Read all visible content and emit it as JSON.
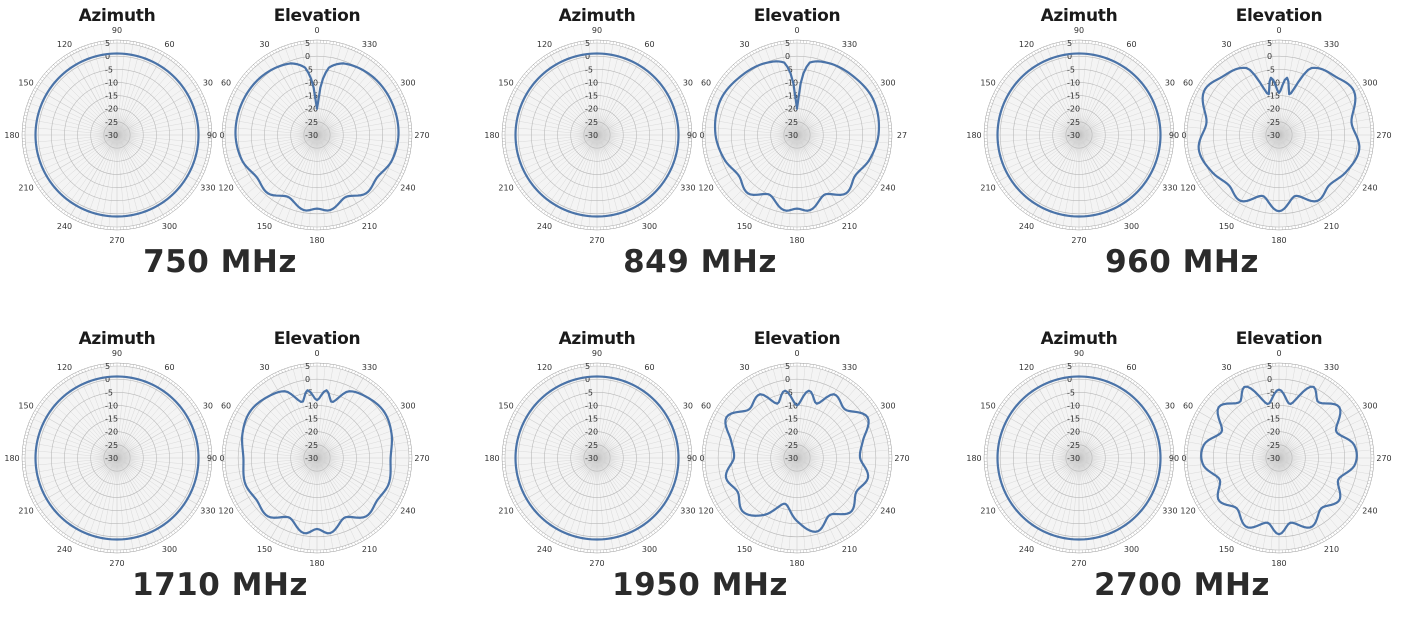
{
  "chart_data": [
    {
      "type": "polar",
      "frequency": "750 MHz",
      "plots": [
        {
          "title": "Azimuth",
          "kind": "azimuth",
          "series": {
            "angle_deg": [
              0,
              90,
              180,
              270
            ],
            "gain_db": [
              1,
              1,
              1,
              1
            ]
          }
        },
        {
          "title": "Elevation",
          "kind": "elevation",
          "series": {
            "angle_deg": [
              0,
              5,
              10,
              20,
              40,
              60,
              90,
              110,
              125,
              140,
              155,
              170,
              180,
              190,
              205,
              220,
              235,
              250,
              270,
              300,
              320,
              340,
              350,
              355
            ],
            "gain_db": [
              -20,
              -10,
              -4,
              -1,
              0.5,
              1,
              1,
              0,
              -2,
              -1,
              -4,
              -1,
              -2,
              -1,
              -4,
              -1,
              -2,
              0,
              1,
              1,
              0.5,
              -1,
              -4,
              -10
            ]
          }
        }
      ],
      "radial_ticks": [
        "5",
        "0",
        "-5",
        "-10",
        "-15",
        "-20",
        "-25",
        "-30"
      ],
      "azimuth_angle_ticks": [
        "90",
        "60",
        "30",
        "0",
        "330",
        "300",
        "270",
        "240",
        "210",
        "180",
        "150",
        "120"
      ],
      "elevation_angle_ticks": [
        "0",
        "330",
        "300",
        "270",
        "240",
        "210",
        "180",
        "150",
        "120",
        "90",
        "60",
        "30"
      ]
    },
    {
      "type": "polar",
      "frequency": "849 MHz",
      "plots": [
        {
          "title": "Azimuth",
          "kind": "azimuth",
          "series": {
            "angle_deg": [
              0,
              90,
              180,
              270
            ],
            "gain_db": [
              1,
              1,
              1,
              1
            ]
          }
        },
        {
          "title": "Elevation",
          "kind": "elevation",
          "series": {
            "angle_deg": [
              0,
              5,
              10,
              25,
              45,
              65,
              90,
              110,
              125,
              140,
              155,
              170,
              180,
              190,
              205,
              220,
              235,
              250,
              270,
              295,
              315,
              335,
              350,
              355
            ],
            "gain_db": [
              -20,
              -8,
              -2,
              0,
              1,
              2,
              1,
              -1,
              -3,
              -1,
              -5,
              -1,
              -2,
              -1,
              -5,
              -1,
              -3,
              -1,
              1,
              2,
              1,
              0,
              -2,
              -8
            ]
          }
        }
      ],
      "radial_ticks": [
        "5",
        "0",
        "-5",
        "-10",
        "-15",
        "-20",
        "-25",
        "-30"
      ],
      "azimuth_angle_ticks": [
        "90",
        "60",
        "30",
        "0",
        "330",
        "300",
        "270",
        "240",
        "210",
        "180",
        "150",
        "120"
      ],
      "elevation_angle_ticks": [
        "0",
        "330",
        "300",
        "27",
        "240",
        "210",
        "180",
        "150",
        "120",
        "90",
        "60",
        "30"
      ]
    },
    {
      "type": "polar",
      "frequency": "960 MHz",
      "plots": [
        {
          "title": "Azimuth",
          "kind": "azimuth",
          "series": {
            "angle_deg": [
              0,
              90,
              180,
              270
            ],
            "gain_db": [
              1,
              1,
              1,
              1
            ]
          }
        },
        {
          "title": "Elevation",
          "kind": "elevation",
          "series": {
            "angle_deg": [
              0,
              8,
              15,
              25,
              45,
              60,
              80,
              100,
              120,
              135,
              150,
              165,
              180,
              195,
              210,
              225,
              240,
              260,
              280,
              300,
              315,
              335,
              345,
              352
            ],
            "gain_db": [
              -14,
              -8,
              -14,
              -2,
              1,
              3,
              -2,
              1,
              -1,
              -3,
              -1,
              -6,
              -1,
              -6,
              -1,
              -3,
              -1,
              1,
              -2,
              3,
              1,
              -2,
              -14,
              -8
            ]
          }
        }
      ],
      "radial_ticks": [
        "5",
        "0",
        "-5",
        "-10",
        "-15",
        "-20",
        "-25",
        "-30"
      ],
      "azimuth_angle_ticks": [
        "90",
        "60",
        "30",
        "0",
        "330",
        "300",
        "270",
        "240",
        "210",
        "180",
        "150",
        "120"
      ],
      "elevation_angle_ticks": [
        "0",
        "330",
        "300",
        "270",
        "240",
        "210",
        "180",
        "150",
        "120",
        "90",
        "60",
        "30"
      ]
    },
    {
      "type": "polar",
      "frequency": "1710 MHz",
      "plots": [
        {
          "title": "Azimuth",
          "kind": "azimuth",
          "series": {
            "angle_deg": [
              0,
              90,
              180,
              270
            ],
            "gain_db": [
              1,
              1,
              1,
              1
            ]
          }
        },
        {
          "title": "Elevation",
          "kind": "elevation",
          "series": {
            "angle_deg": [
              0,
              8,
              15,
              25,
              40,
              55,
              70,
              90,
              110,
              125,
              140,
              155,
              170,
              180,
              190,
              205,
              220,
              235,
              250,
              270,
              290,
              305,
              320,
              335,
              345,
              352
            ],
            "gain_db": [
              -8,
              -4,
              -8,
              -2,
              0,
              1,
              0,
              -2,
              -1,
              -2,
              -1,
              -5,
              -1,
              -3,
              -1,
              -5,
              -1,
              -2,
              -1,
              -2,
              0,
              1,
              0,
              -2,
              -8,
              -4
            ]
          }
        }
      ],
      "radial_ticks": [
        "5",
        "0",
        "-5",
        "-10",
        "-15",
        "-20",
        "-25",
        "-30"
      ],
      "azimuth_angle_ticks": [
        "90",
        "60",
        "30",
        "0",
        "330",
        "300",
        "270",
        "240",
        "210",
        "180",
        "150",
        "120"
      ],
      "elevation_angle_ticks": [
        "0",
        "330",
        "300",
        "270",
        "240",
        "210",
        "180",
        "150",
        "120",
        "90",
        "60",
        "30"
      ]
    },
    {
      "type": "polar",
      "frequency": "1950 MHz",
      "plots": [
        {
          "title": "Azimuth",
          "kind": "azimuth",
          "series": {
            "angle_deg": [
              0,
              90,
              180,
              270
            ],
            "gain_db": [
              1,
              1,
              1,
              1
            ]
          }
        },
        {
          "title": "Elevation",
          "kind": "elevation",
          "series": {
            "angle_deg": [
              0,
              10,
              20,
              30,
              45,
              60,
              75,
              90,
              105,
              120,
              135,
              150,
              165,
              180,
              195,
              210,
              225,
              240,
              255,
              270,
              285,
              300,
              315,
              330,
              340,
              350
            ],
            "gain_db": [
              -10,
              -4,
              -8,
              -2,
              -4,
              1,
              -4,
              -6,
              -2,
              -4,
              -1,
              -5,
              -12,
              -6,
              -1,
              -5,
              -1,
              -4,
              -2,
              -6,
              -4,
              1,
              -4,
              -2,
              -8,
              -4
            ]
          }
        }
      ],
      "radial_ticks": [
        "5",
        "0",
        "-5",
        "-10",
        "-15",
        "-20",
        "-25",
        "-30"
      ],
      "azimuth_angle_ticks": [
        "90",
        "60",
        "30",
        "0",
        "330",
        "300",
        "270",
        "240",
        "210",
        "180",
        "150",
        "120"
      ],
      "elevation_angle_ticks": [
        "0",
        "330",
        "300",
        "270",
        "240",
        "210",
        "180",
        "150",
        "120",
        "90",
        "60",
        "30"
      ]
    },
    {
      "type": "polar",
      "frequency": "2700 MHz",
      "plots": [
        {
          "title": "Azimuth",
          "kind": "azimuth",
          "series": {
            "angle_deg": [
              0,
              90,
              180,
              270
            ],
            "gain_db": [
              1,
              1,
              1,
              1
            ]
          }
        },
        {
          "title": "Elevation",
          "kind": "elevation",
          "series": {
            "angle_deg": [
              0,
              12,
              25,
              35,
              50,
              65,
              80,
              95,
              110,
              125,
              140,
              155,
              170,
              180,
              190,
              205,
              220,
              235,
              250,
              265,
              280,
              295,
              310,
              325,
              335,
              348
            ],
            "gain_db": [
              -4,
              -9,
              0,
              -4,
              0,
              -6,
              -1,
              -1,
              -6,
              -2,
              -5,
              -1,
              -5,
              -1,
              -5,
              -1,
              -5,
              -2,
              -6,
              -1,
              -1,
              -6,
              0,
              -4,
              0,
              -9
            ]
          }
        }
      ],
      "radial_ticks": [
        "5",
        "0",
        "-5",
        "-10",
        "-15",
        "-20",
        "-25",
        "-30"
      ],
      "azimuth_angle_ticks": [
        "90",
        "60",
        "30",
        "0",
        "330",
        "300",
        "270",
        "240",
        "210",
        "180",
        "150",
        "120"
      ],
      "elevation_angle_ticks": [
        "0",
        "330",
        "300",
        "270",
        "240",
        "210",
        "180",
        "150",
        "120",
        "90",
        "60",
        "30"
      ]
    }
  ],
  "colors": {
    "trace": "#4a73a8",
    "grid": "#cfcfcf",
    "center": "#dcdcdc"
  }
}
